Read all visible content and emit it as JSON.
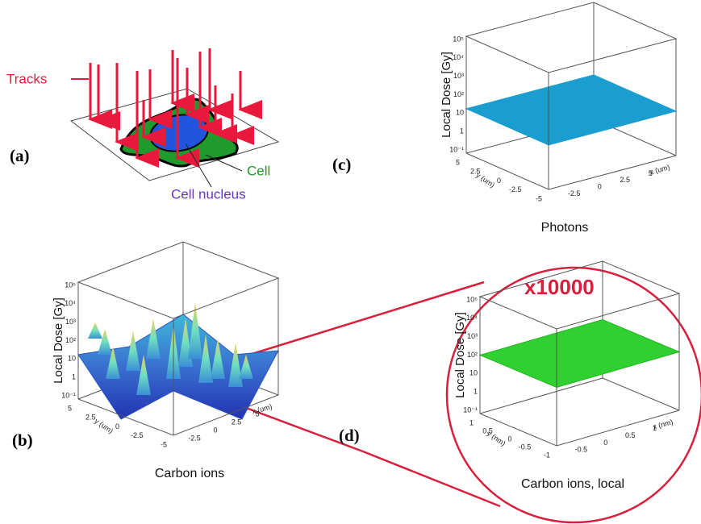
{
  "panel_a": {
    "label": "(a)",
    "tracks_label": "Tracks",
    "cell_label": "Cell",
    "nucleus_label": "Cell nucleus"
  },
  "panel_b": {
    "label": "(b)",
    "z_title": "Local Dose [Gy]",
    "z_ticks": [
      "10⁵",
      "10⁴",
      "10³",
      "10²",
      "10",
      "1",
      "10⁻¹"
    ],
    "y_title": "y (um)",
    "y_ticks": [
      "5",
      "2.5",
      "0",
      "-2.5",
      "-5"
    ],
    "x_title": "x (um)",
    "x_ticks": [
      "-2.5",
      "0",
      "2.5",
      "5"
    ],
    "caption": "Carbon ions"
  },
  "panel_c": {
    "label": "(c)",
    "z_title": "Local Dose [Gy]",
    "z_ticks": [
      "10⁵",
      "10⁴",
      "10³",
      "10²",
      "10",
      "1",
      "10⁻¹"
    ],
    "y_title": "y (um)",
    "y_ticks": [
      "5",
      "2.5",
      "0",
      "-2.5",
      "-5"
    ],
    "x_title": "x (um)",
    "x_ticks": [
      "-2.5",
      "0",
      "2.5",
      "5"
    ],
    "caption": "Photons"
  },
  "panel_d": {
    "label": "(d)",
    "magnification": "x10000",
    "z_title": "Local Dose [Gy]",
    "z_ticks": [
      "10⁵",
      "10⁴",
      "10³",
      "10²",
      "10",
      "1",
      "10⁻¹"
    ],
    "y_title": "y (nm)",
    "y_ticks": [
      "1",
      "0.5",
      "0",
      "-0.5",
      "-1"
    ],
    "x_title": "x (nm)",
    "x_ticks": [
      "-0.5",
      "0",
      "0.5",
      "1"
    ],
    "caption": "Carbon ions, local"
  }
}
